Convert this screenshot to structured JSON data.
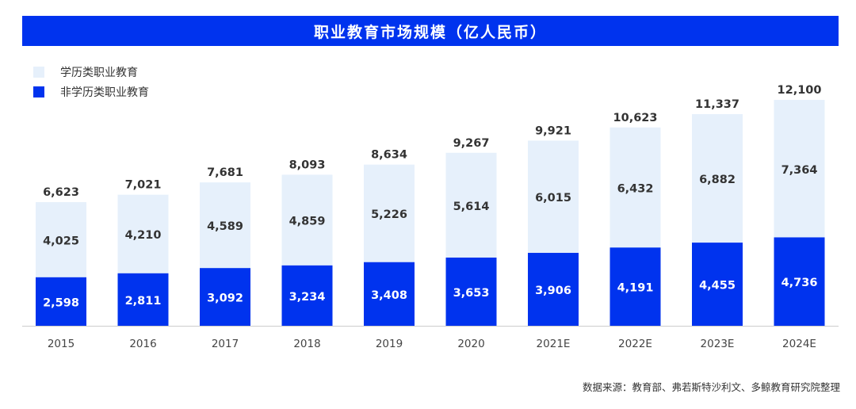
{
  "title": "职业教育市场规模（亿人民币）",
  "source": "数据来源：教育部、弗若斯特沙利文、多鲸教育研究院整理",
  "colors": {
    "title_bg": "#0033ee",
    "academic": "#e6f0fb",
    "non_academic": "#0033ee"
  },
  "legend": [
    {
      "label": "学历类职业教育",
      "color": "#e6f0fb"
    },
    {
      "label": "非学历类职业教育",
      "color": "#0033ee"
    }
  ],
  "chart_data": {
    "type": "bar",
    "stacked": true,
    "title": "职业教育市场规模（亿人民币）",
    "xlabel": "",
    "ylabel": "",
    "categories": [
      "2015",
      "2016",
      "2017",
      "2018",
      "2019",
      "2020",
      "2021E",
      "2022E",
      "2023E",
      "2024E"
    ],
    "series": [
      {
        "name": "非学历类职业教育",
        "values": [
          2598,
          2811,
          3092,
          3234,
          3408,
          3653,
          3906,
          4191,
          4455,
          4736
        ]
      },
      {
        "name": "学历类职业教育",
        "values": [
          4025,
          4210,
          4589,
          4859,
          5226,
          5614,
          6015,
          6432,
          6882,
          7364
        ]
      }
    ],
    "totals": [
      6623,
      7021,
      7681,
      8093,
      8634,
      9267,
      9921,
      10623,
      11337,
      12100
    ],
    "value_labels": {
      "non_academic": [
        "2,598",
        "2,811",
        "3,092",
        "3,234",
        "3,408",
        "3,653",
        "3,906",
        "4,191",
        "4,455",
        "4,736"
      ],
      "academic": [
        "4,025",
        "4,210",
        "4,589",
        "4,859",
        "5,226",
        "5,614",
        "6,015",
        "6,432",
        "6,882",
        "7,364"
      ],
      "totals": [
        "6,623",
        "7,021",
        "7,681",
        "8,093",
        "8,634",
        "9,267",
        "9,921",
        "10,623",
        "11,337",
        "12,100"
      ]
    },
    "ylim": [
      0,
      12100
    ],
    "grid": false,
    "legend_position": "top-left"
  }
}
